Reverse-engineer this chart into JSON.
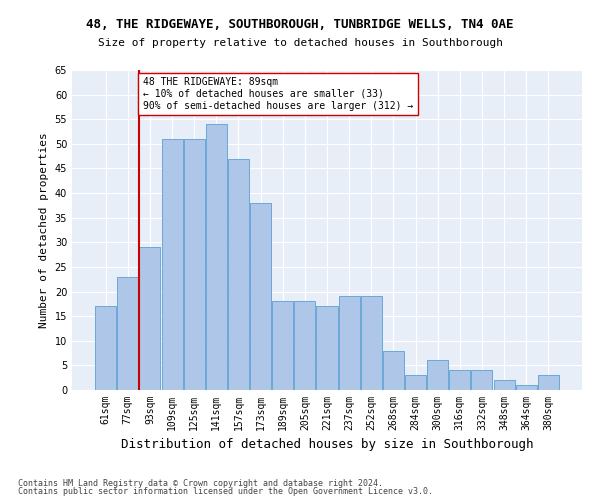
{
  "title1": "48, THE RIDGEWAYE, SOUTHBOROUGH, TUNBRIDGE WELLS, TN4 0AE",
  "title2": "Size of property relative to detached houses in Southborough",
  "xlabel": "Distribution of detached houses by size in Southborough",
  "ylabel": "Number of detached properties",
  "categories": [
    "61sqm",
    "77sqm",
    "93sqm",
    "109sqm",
    "125sqm",
    "141sqm",
    "157sqm",
    "173sqm",
    "189sqm",
    "205sqm",
    "221sqm",
    "237sqm",
    "252sqm",
    "268sqm",
    "284sqm",
    "300sqm",
    "316sqm",
    "332sqm",
    "348sqm",
    "364sqm",
    "380sqm"
  ],
  "values": [
    17,
    23,
    29,
    51,
    51,
    54,
    47,
    38,
    18,
    18,
    17,
    19,
    19,
    8,
    3,
    6,
    4,
    4,
    2,
    1,
    3
  ],
  "bar_color": "#aec6e8",
  "bar_edge_color": "#5a9fd4",
  "marker_line_color": "#cc0000",
  "marker_label": "48 THE RIDGEWAYE: 89sqm",
  "annotation_smaller": "← 10% of detached houses are smaller (33)",
  "annotation_larger": "90% of semi-detached houses are larger (312) →",
  "ylim": [
    0,
    65
  ],
  "yticks": [
    0,
    5,
    10,
    15,
    20,
    25,
    30,
    35,
    40,
    45,
    50,
    55,
    60,
    65
  ],
  "footnote1": "Contains HM Land Registry data © Crown copyright and database right 2024.",
  "footnote2": "Contains public sector information licensed under the Open Government Licence v3.0.",
  "bg_color": "#e8eef8",
  "title_fontsize": 9,
  "subtitle_fontsize": 8,
  "axis_label_fontsize": 8,
  "tick_fontsize": 7,
  "annotation_fontsize": 7,
  "footnote_fontsize": 6
}
